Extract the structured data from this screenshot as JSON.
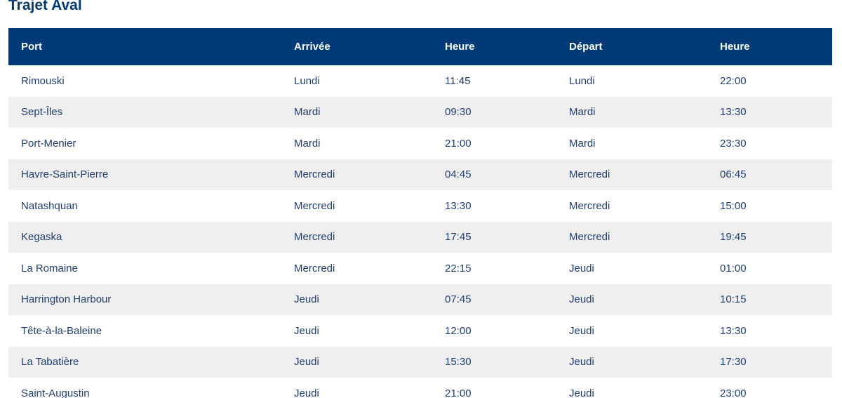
{
  "header": {
    "title": "Trajet Aval"
  },
  "table": {
    "columns": [
      "Port",
      "Arrivée",
      "Heure",
      "Départ",
      "Heure"
    ],
    "rows": [
      [
        "Rimouski",
        "Lundi",
        "11:45",
        "Lundi",
        "22:00"
      ],
      [
        "Sept-Îles",
        "Mardi",
        "09:30",
        "Mardi",
        "13:30"
      ],
      [
        "Port-Menier",
        "Mardi",
        "21:00",
        "Mardi",
        "23:30"
      ],
      [
        "Havre-Saint-Pierre",
        "Mercredi",
        "04:45",
        "Mercredi",
        "06:45"
      ],
      [
        "Natashquan",
        "Mercredi",
        "13:30",
        "Mercredi",
        "15:00"
      ],
      [
        "Kegaska",
        "Mercredi",
        "17:45",
        "Mercredi",
        "19:45"
      ],
      [
        "La Romaine",
        "Mercredi",
        "22:15",
        "Jeudi",
        "01:00"
      ],
      [
        "Harrington Harbour",
        "Jeudi",
        "07:45",
        "Jeudi",
        "10:15"
      ],
      [
        "Tête-à-la-Baleine",
        "Jeudi",
        "12:00",
        "Jeudi",
        "13:30"
      ],
      [
        "La Tabatière",
        "Jeudi",
        "15:30",
        "Jeudi",
        "17:30"
      ],
      [
        "Saint-Augustin",
        "Jeudi",
        "21:00",
        "Jeudi",
        "23:00"
      ]
    ]
  }
}
